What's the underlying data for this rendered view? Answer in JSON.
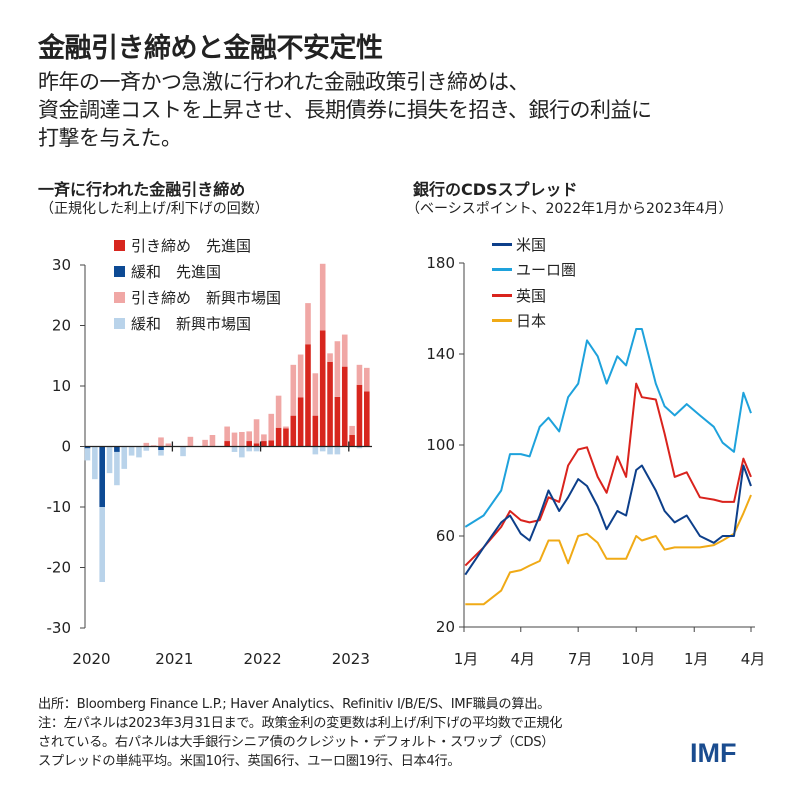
{
  "header": {
    "title": "金融引き締めと金融不安定性",
    "subtitle_lines": [
      "昨年の一斉かつ急激に行われた金融政策引き締めは、",
      "資金調達コストを上昇させ、長期債券に損失を招き、銀行の利益に",
      "打撃を与えた。"
    ]
  },
  "footer": {
    "lines": [
      "出所：Bloomberg Finance L.P.; Haver Analytics、Refinitiv I/B/E/S、IMF職員の算出。",
      "注：左パネルは2023年3月31日まで。政策金利の変更数は利上げ/利下げの平均数で正規化",
      "されている。右パネルは大手銀行シニア債のクレジット・デフォルト・スワップ（CDS）",
      "スプレッドの単純平均。米国10行、英国6行、ユーロ圏19行、日本4行。"
    ],
    "logo": "IMF"
  },
  "chart_data": [
    {
      "type": "bar",
      "stacked": true,
      "title": "一斉に行われた金融引き締め",
      "subtitle": "（正規化した利上げ/利下げの回数）",
      "ylim": [
        -30,
        30
      ],
      "yticks": [
        "30",
        "20",
        "10",
        "0",
        "-10",
        "-20",
        "-30"
      ],
      "yticks_values": [
        30,
        20,
        10,
        0,
        -10,
        -20,
        -30
      ],
      "xtick_labels": [
        "2020",
        "2021",
        "2022",
        "2023"
      ],
      "legend_placement": "top-left",
      "categories": [
        "2020-01",
        "2020-02",
        "2020-03",
        "2020-04",
        "2020-05",
        "2020-06",
        "2020-07",
        "2020-08",
        "2020-09",
        "2020-10",
        "2020-11",
        "2020-12",
        "2021-01",
        "2021-02",
        "2021-03",
        "2021-04",
        "2021-05",
        "2021-06",
        "2021-07",
        "2021-08",
        "2021-09",
        "2021-10",
        "2021-11",
        "2021-12",
        "2022-01",
        "2022-02",
        "2022-03",
        "2022-04",
        "2022-05",
        "2022-06",
        "2022-07",
        "2022-08",
        "2022-09",
        "2022-10",
        "2022-11",
        "2022-12",
        "2023-01",
        "2023-02",
        "2023-03"
      ],
      "series": [
        {
          "name": "引き締め　先進国",
          "color": "#d7261e",
          "values": [
            0,
            0,
            0,
            0,
            0,
            0,
            0,
            0,
            0,
            0,
            0,
            0,
            0,
            0,
            0,
            0,
            0,
            0,
            0,
            0.9,
            0,
            0,
            0.9,
            0.5,
            0.9,
            1.0,
            3.1,
            3.0,
            5.1,
            8.1,
            16.9,
            5.1,
            19.2,
            14.0,
            8.2,
            13.2,
            1.9,
            10.2,
            9.1
          ]
        },
        {
          "name": "緩和　先進国",
          "color": "#0d4a94",
          "values": [
            -0.3,
            0,
            -10,
            0,
            -0.9,
            0,
            0,
            0,
            0,
            0,
            -0.6,
            0,
            0,
            0,
            0,
            0,
            0,
            0,
            0,
            0,
            0,
            0,
            0,
            0,
            0,
            0,
            0,
            0,
            0,
            0,
            0,
            0,
            0,
            0,
            0,
            0,
            0,
            0,
            0
          ]
        },
        {
          "name": "引き締め　新興市場国",
          "color": "#f0a7a5",
          "values": [
            0,
            0,
            0,
            0,
            0,
            0,
            0,
            0,
            0.6,
            0.2,
            1.5,
            0.5,
            0,
            0,
            1.6,
            0,
            1.1,
            1.9,
            0,
            2.4,
            2.3,
            2.4,
            1.6,
            4.0,
            1.1,
            4.4,
            5.3,
            0.3,
            8.4,
            7.1,
            6.8,
            7.0,
            11.0,
            1.4,
            9.2,
            5.3,
            1.5,
            3.3,
            3.9
          ]
        },
        {
          "name": "緩和　新興市場国",
          "color": "#b9d3ea",
          "values": [
            -2.0,
            -5.4,
            -12.4,
            -4.4,
            -5.5,
            -3.7,
            -1.5,
            -1.8,
            -0.7,
            0,
            -0.9,
            0,
            0,
            -1.6,
            0,
            0,
            0,
            0,
            0,
            0,
            -0.9,
            -1.8,
            -0.8,
            -0.8,
            0,
            0,
            0,
            0,
            0,
            0,
            0,
            -1.3,
            -0.8,
            -1.3,
            -1.3,
            0,
            0,
            -0.3,
            0
          ]
        }
      ]
    },
    {
      "type": "line",
      "title": "銀行のCDSスプレッド",
      "subtitle": "（ベーシスポイント、2022年1月から2023年4月）",
      "ylim": [
        20,
        180
      ],
      "yticks": [
        "180",
        "140",
        "100",
        "60",
        "20"
      ],
      "yticks_values": [
        180,
        140,
        100,
        60,
        20
      ],
      "xlim": [
        "2022-01-01",
        "2023-04-01"
      ],
      "xtick_labels": [
        "1月",
        "4月",
        "7月",
        "10月",
        "1月",
        "4月"
      ],
      "xtick_dates": [
        "2022-01-01",
        "2022-04-01",
        "2022-07-01",
        "2022-10-01",
        "2023-01-01",
        "2023-04-01"
      ],
      "legend_placement": "top-left",
      "x": [
        "2022-01-03",
        "2022-02-01",
        "2022-03-01",
        "2022-03-15",
        "2022-04-01",
        "2022-04-15",
        "2022-05-01",
        "2022-05-15",
        "2022-06-01",
        "2022-06-15",
        "2022-07-01",
        "2022-07-15",
        "2022-08-01",
        "2022-08-15",
        "2022-09-01",
        "2022-09-15",
        "2022-10-01",
        "2022-10-10",
        "2022-11-01",
        "2022-11-15",
        "2022-12-01",
        "2022-12-20",
        "2023-01-10",
        "2023-02-01",
        "2023-02-15",
        "2023-03-05",
        "2023-03-20",
        "2023-04-01"
      ],
      "series": [
        {
          "name": "米国",
          "color": "#0d3f8a",
          "values": [
            43,
            55,
            66,
            69,
            61,
            58,
            69,
            80,
            71,
            77,
            85,
            82,
            73,
            63,
            71,
            69,
            89,
            91,
            80,
            71,
            66,
            69,
            60,
            57,
            60,
            60,
            91,
            82
          ]
        },
        {
          "name": "ユーロ圏",
          "color": "#1ea2dc",
          "values": [
            64,
            69,
            80,
            96,
            96,
            95,
            108,
            112,
            106,
            121,
            127,
            146,
            139,
            127,
            139,
            135,
            151,
            151,
            127,
            117,
            113,
            118,
            113,
            108,
            101,
            97,
            123,
            114
          ]
        },
        {
          "name": "英国",
          "color": "#d9231d",
          "values": [
            47,
            55,
            64,
            71,
            67,
            66,
            67,
            77,
            75,
            91,
            98,
            99,
            86,
            79,
            95,
            86,
            127,
            121,
            120,
            105,
            86,
            88,
            77,
            76,
            75,
            75,
            94,
            86
          ]
        },
        {
          "name": "日本",
          "color": "#f0aa16",
          "values": [
            30,
            30,
            36,
            44,
            45,
            47,
            49,
            58,
            58,
            48,
            60,
            61,
            57,
            50,
            50,
            50,
            60,
            58,
            60,
            54,
            55,
            55,
            55,
            56,
            58,
            61,
            70,
            78
          ]
        }
      ]
    }
  ]
}
